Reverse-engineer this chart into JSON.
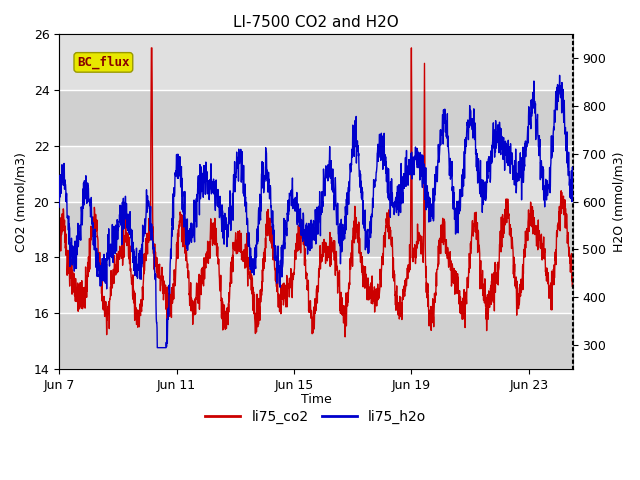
{
  "title": "LI-7500 CO2 and H2O",
  "xlabel": "Time",
  "ylabel_left": "CO2 (mmol/m3)",
  "ylabel_right": "H2O (mmol/m3)",
  "ylim_left": [
    14,
    26
  ],
  "ylim_right": [
    250,
    950
  ],
  "xtick_labels": [
    "Jun 7",
    "Jun 11",
    "Jun 15",
    "Jun 19",
    "Jun 23"
  ],
  "xtick_positions": [
    0,
    4,
    8,
    12,
    16
  ],
  "bc_flux_label": "BC_flux",
  "legend_labels": [
    "li75_co2",
    "li75_h2o"
  ],
  "co2_color": "#cc0000",
  "h2o_color": "#0000cc",
  "plot_bg_color": "#d8d8d8",
  "fig_bg_color": "#ffffff",
  "grid_color": "#ffffff",
  "bc_flux_box_color": "#e8e800",
  "bc_flux_text_color": "#880000",
  "title_fontsize": 11,
  "axis_label_fontsize": 9,
  "tick_fontsize": 9,
  "legend_fontsize": 10,
  "line_width": 1.0,
  "total_days": 17.5,
  "num_points": 2000
}
